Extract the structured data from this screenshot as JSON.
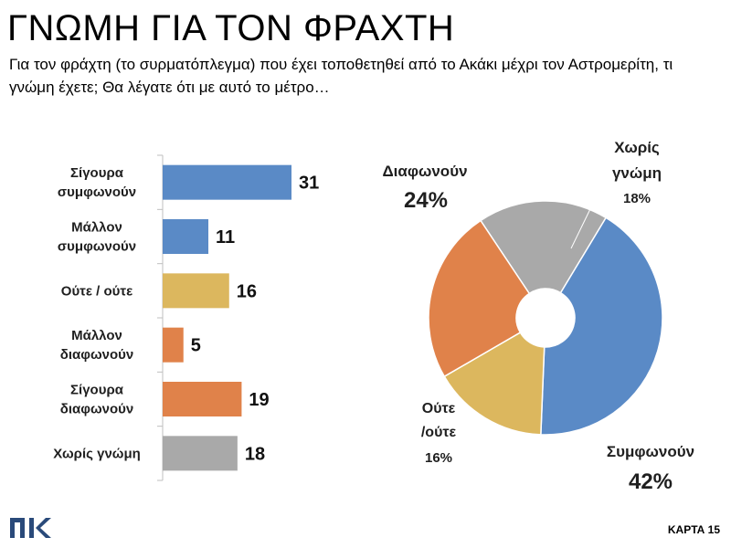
{
  "header": {
    "title": "ΓΝΩΜΗ ΓΙΑ ΤΟΝ ΦΡΑΧΤΗ",
    "subtitle": "Για τον φράχτη (το συρματόπλεγμα) που έχει τοποθετηθεί από το Ακάκι μέχρι τον Αστρομερίτη, τι γνώμη έχετε; Θα λέγατε ότι με αυτό το μέτρο…"
  },
  "footer": {
    "logo_text": "ΠΚ",
    "card_label": "ΚΑΡΤΑ 15"
  },
  "chart_data": [
    {
      "type": "bar",
      "orientation": "horizontal",
      "categories": [
        [
          "Σίγουρα",
          "συμφωνούν"
        ],
        [
          "Μάλλον",
          "συμφωνούν"
        ],
        [
          "Ούτε / ούτε"
        ],
        [
          "Μάλλον",
          "διαφωνούν"
        ],
        [
          "Σίγουρα",
          "διαφωνούν"
        ],
        [
          "Χωρίς γνώμη"
        ]
      ],
      "values": [
        31,
        11,
        16,
        5,
        19,
        18
      ],
      "colors": [
        "#5a8ac6",
        "#5a8ac6",
        "#dcb75e",
        "#e0824a",
        "#e0824a",
        "#a9a9a9"
      ],
      "xlim": [
        0,
        31
      ],
      "grid": false,
      "axis": "vertical-left-with-ticks"
    },
    {
      "type": "pie",
      "style": "donut",
      "slices": [
        {
          "label": [
            "Συμφωνούν"
          ],
          "value": 42,
          "value_label": "42%",
          "color": "#5a8ac6"
        },
        {
          "label": [
            "Ούτε",
            "/ούτε"
          ],
          "value": 16,
          "value_label": "16%",
          "color": "#dcb75e"
        },
        {
          "label": [
            "Διαφωνούν"
          ],
          "value": 24,
          "value_label": "24%",
          "color": "#e0824a"
        },
        {
          "label": [
            "Χωρίς",
            "γνώμη"
          ],
          "value": 18,
          "value_label": "18%",
          "color": "#a9a9a9"
        }
      ],
      "start": "top, clockwise from Χωρίς γνώμη",
      "order": [
        "Χωρίς γνώμη",
        "Συμφωνούν",
        "Ούτε /ούτε",
        "Διαφωνούν"
      ]
    }
  ]
}
